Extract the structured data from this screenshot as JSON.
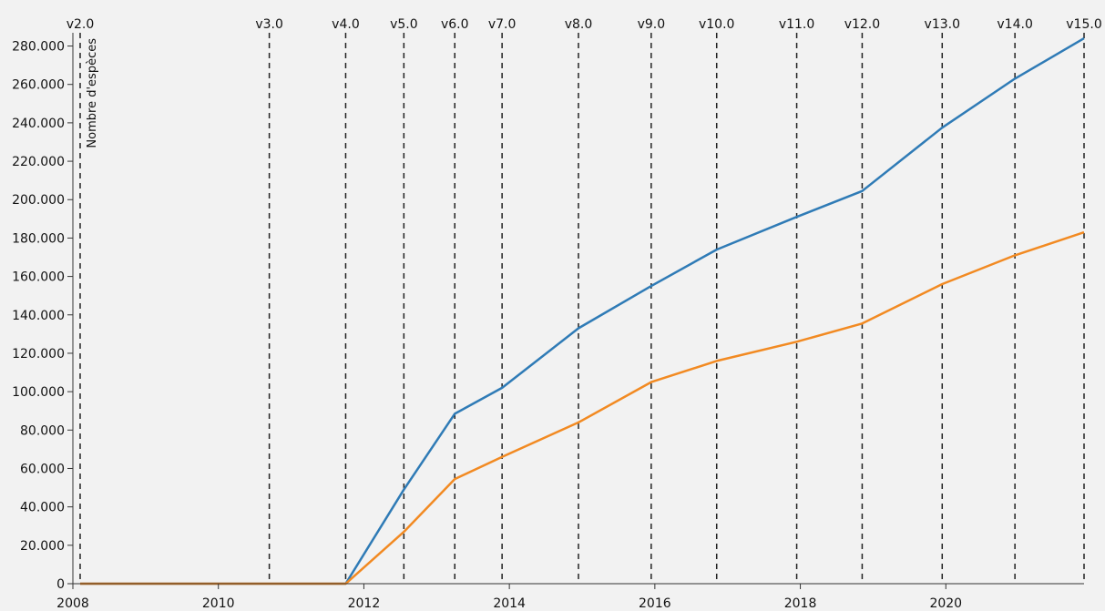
{
  "chart_data": {
    "type": "line",
    "title": "",
    "xlabel": "",
    "ylabel": "Nombre d'espèces",
    "xlim": [
      2008.0,
      2021.9
    ],
    "ylim": [
      0,
      285000
    ],
    "x_ticks": [
      2008,
      2010,
      2012,
      2014,
      2016,
      2018,
      2020
    ],
    "x_tick_labels": [
      "2008",
      "2010",
      "2012",
      "2014",
      "2016",
      "2018",
      "2020"
    ],
    "y_ticks": [
      0,
      20000,
      40000,
      60000,
      80000,
      100000,
      120000,
      140000,
      160000,
      180000,
      200000,
      220000,
      240000,
      260000,
      280000
    ],
    "y_tick_labels": [
      "0",
      "20.000",
      "40.000",
      "60.000",
      "80.000",
      "100.000",
      "120.000",
      "140.000",
      "160.000",
      "180.000",
      "200.000",
      "220.000",
      "240.000",
      "260.000",
      "280.000"
    ],
    "grid": false,
    "versions": [
      {
        "label": "v2.0",
        "x": 2008.1
      },
      {
        "label": "v3.0",
        "x": 2010.7
      },
      {
        "label": "v4.0",
        "x": 2011.75
      },
      {
        "label": "v5.0",
        "x": 2012.55
      },
      {
        "label": "v6.0",
        "x": 2013.25
      },
      {
        "label": "v7.0",
        "x": 2013.9
      },
      {
        "label": "v8.0",
        "x": 2014.95
      },
      {
        "label": "v9.0",
        "x": 2015.95
      },
      {
        "label": "v10.0",
        "x": 2016.85
      },
      {
        "label": "v11.0",
        "x": 2017.95
      },
      {
        "label": "v12.0",
        "x": 2018.85
      },
      {
        "label": "v13.0",
        "x": 2019.95
      },
      {
        "label": "v14.0",
        "x": 2020.95
      },
      {
        "label": "v15.0",
        "x": 2021.9
      }
    ],
    "series": [
      {
        "color": "#2f7bb6",
        "x": [
          2008.1,
          2010.7,
          2011.75,
          2012.55,
          2013.25,
          2013.9,
          2014.95,
          2015.95,
          2016.85,
          2017.95,
          2018.85,
          2019.95,
          2020.95,
          2021.9
        ],
        "values": [
          0,
          0,
          0,
          49000,
          88500,
          102000,
          133000,
          155000,
          174000,
          191000,
          204500,
          237500,
          263000,
          284000
        ]
      },
      {
        "color": "#f28a22",
        "x": [
          2008.1,
          2010.7,
          2011.75,
          2012.55,
          2013.25,
          2013.9,
          2014.95,
          2015.95,
          2016.85,
          2017.95,
          2018.85,
          2019.95,
          2020.95,
          2021.9
        ],
        "values": [
          0,
          0,
          0,
          27000,
          54500,
          66000,
          84000,
          105000,
          116000,
          126000,
          135500,
          156000,
          171000,
          183000
        ]
      }
    ]
  }
}
